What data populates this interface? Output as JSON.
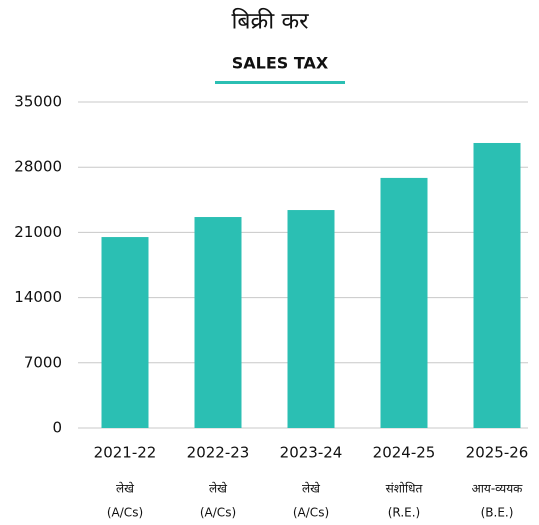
{
  "chart_data": {
    "type": "bar",
    "title": "बिक्री कर",
    "subtitle": "SALES TAX",
    "categories": [
      "2021-22",
      "2022-23",
      "2023-24",
      "2024-25",
      "2025-26"
    ],
    "category_notes": [
      [
        "लेखे",
        "(A/Cs)"
      ],
      [
        "लेखे",
        "(A/Cs)"
      ],
      [
        "लेखे",
        "(A/Cs)"
      ],
      [
        "संशोधित",
        "(R.E.)"
      ],
      [
        "आय-व्ययक",
        "(B.E.)"
      ]
    ],
    "values": [
      20500,
      22650,
      23400,
      26850,
      30600
    ],
    "color": "#2bbfb3",
    "ylim": [
      0,
      35000
    ],
    "yticks": [
      0,
      7000,
      14000,
      21000,
      28000,
      35000
    ],
    "grid": true
  }
}
